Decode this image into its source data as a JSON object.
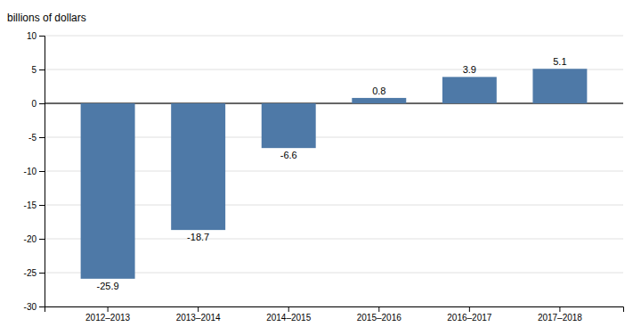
{
  "chart_data": {
    "type": "bar",
    "ylabel": "billions of dollars",
    "categories": [
      "2012–2013",
      "2013–2014",
      "2014–2015",
      "2015–2016",
      "2016–2017",
      "2017–2018"
    ],
    "values": [
      -25.9,
      -18.7,
      -6.6,
      0.8,
      3.9,
      5.1
    ],
    "ylim": [
      -30,
      10
    ],
    "yticks": [
      -30,
      -25,
      -20,
      -15,
      -10,
      -5,
      0,
      5,
      10
    ],
    "grid": true,
    "data_labels": true
  }
}
